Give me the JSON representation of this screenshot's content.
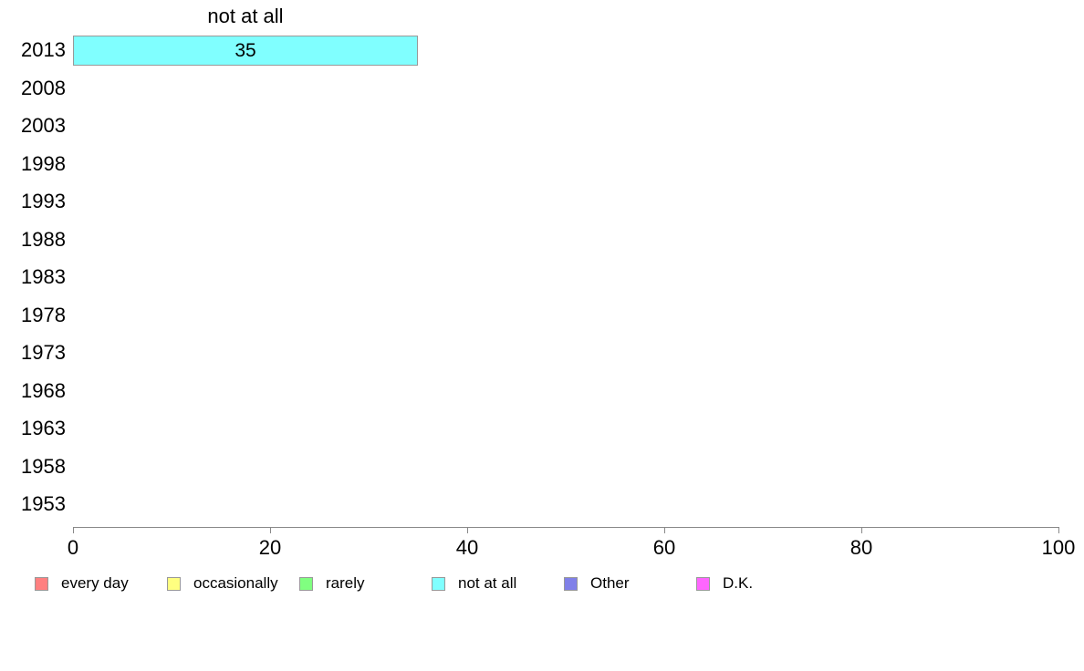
{
  "chart_data": {
    "type": "bar",
    "orientation": "horizontal",
    "title": "not at all",
    "categories": [
      "2013",
      "2008",
      "2003",
      "1998",
      "1993",
      "1988",
      "1983",
      "1978",
      "1973",
      "1968",
      "1963",
      "1958",
      "1953"
    ],
    "points": [
      {
        "category": "2013",
        "series": "not at all",
        "value": 35,
        "label": "35"
      }
    ],
    "xlim": [
      0,
      100
    ],
    "x_ticks": [
      0,
      20,
      40,
      60,
      80,
      100
    ],
    "grid": false,
    "legend_position": "bottom",
    "legend": [
      {
        "label": "every day",
        "color": "#FF8080"
      },
      {
        "label": "occasionally",
        "color": "#FFFF80"
      },
      {
        "label": "rarely",
        "color": "#80FF80"
      },
      {
        "label": "not at all",
        "color": "#80FFFF"
      },
      {
        "label": "Other",
        "color": "#8080E8"
      },
      {
        "label": "D.K.",
        "color": "#FF66FF"
      }
    ],
    "colors": {
      "bar_border": "#999999",
      "axis": "#888888",
      "text": "#000000"
    }
  }
}
